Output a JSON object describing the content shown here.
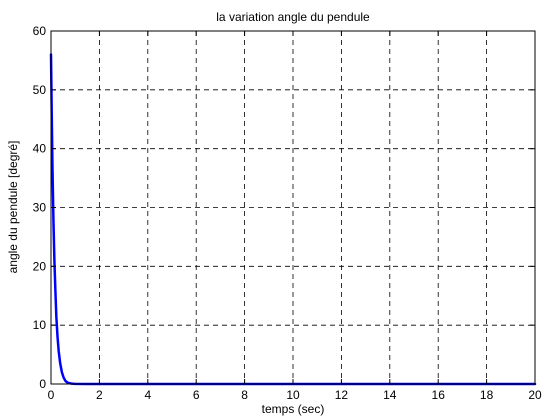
{
  "chart_data": {
    "type": "line",
    "title": "la variation angle du pendule",
    "xlabel": "temps (sec)",
    "ylabel": "angle du pendule [degré]",
    "xlim": [
      0,
      20
    ],
    "ylim": [
      0,
      60
    ],
    "xticks": [
      0,
      2,
      4,
      6,
      8,
      10,
      12,
      14,
      16,
      18,
      20
    ],
    "yticks": [
      0,
      10,
      20,
      30,
      40,
      50,
      60
    ],
    "grid": true,
    "grid_style": "dashed",
    "series": [
      {
        "color": "#0000ff",
        "x": [
          0,
          0.03,
          0.06,
          0.1,
          0.14,
          0.18,
          0.22,
          0.27,
          0.32,
          0.38,
          0.45,
          0.52,
          0.6,
          0.7,
          0.85,
          1.0,
          1.5,
          2,
          4,
          6,
          8,
          10,
          12,
          14,
          16,
          18,
          20
        ],
        "y": [
          56,
          46,
          37,
          28,
          21,
          16,
          11.5,
          8,
          5.5,
          3.5,
          2,
          1.1,
          0.5,
          0.2,
          0.06,
          0.02,
          0,
          0,
          0,
          0,
          0,
          0,
          0,
          0,
          0,
          0,
          0
        ]
      }
    ]
  }
}
